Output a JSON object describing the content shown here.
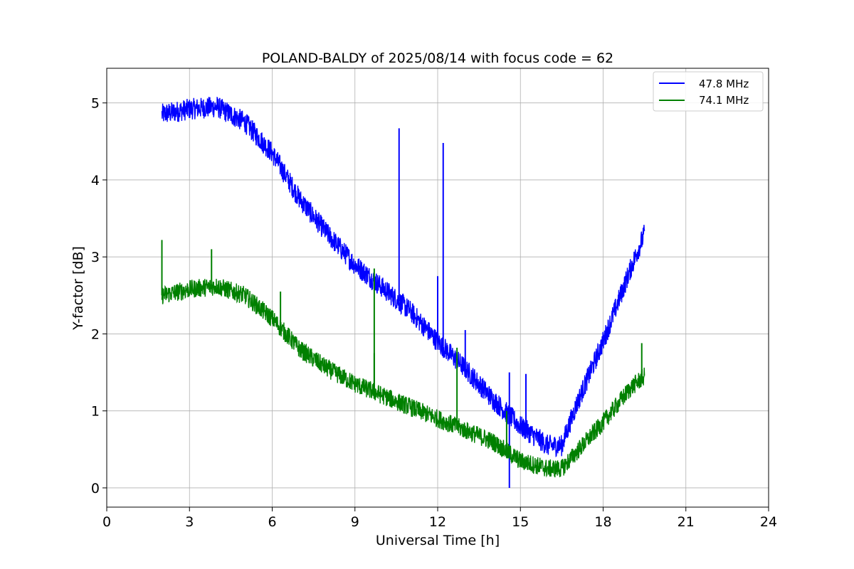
{
  "chart_data": {
    "type": "line",
    "title": "POLAND-BALDY of 2025/08/14 with focus code = 62",
    "xlabel": "Universal Time [h]",
    "ylabel": "Y-factor [dB]",
    "xlim": [
      0,
      24
    ],
    "ylim": [
      -0.25,
      5.45
    ],
    "xticks": [
      0,
      3,
      6,
      9,
      12,
      15,
      18,
      21,
      24
    ],
    "yticks": [
      0,
      1,
      2,
      3,
      4,
      5
    ],
    "grid": true,
    "legend_position": "top-right",
    "series": [
      {
        "name": "47.8 MHz",
        "color": "#0000ff",
        "x": [
          2.0,
          3.0,
          4.0,
          5.0,
          6.0,
          7.0,
          8.0,
          9.0,
          10.0,
          11.0,
          12.0,
          13.0,
          14.0,
          15.0,
          16.0,
          16.5,
          17.0,
          18.0,
          19.0,
          19.5
        ],
        "y": [
          4.85,
          4.92,
          4.95,
          4.75,
          4.35,
          3.75,
          3.3,
          2.9,
          2.6,
          2.3,
          1.9,
          1.55,
          1.15,
          0.8,
          0.55,
          0.55,
          1.05,
          1.9,
          2.85,
          3.3
        ],
        "spikes": [
          [
            10.6,
            4.67
          ],
          [
            12.2,
            4.48
          ],
          [
            12.0,
            2.75
          ],
          [
            13.0,
            2.05
          ],
          [
            14.6,
            1.5
          ],
          [
            15.2,
            1.48
          ],
          [
            14.6,
            0.0
          ]
        ]
      },
      {
        "name": "74.1 MHz",
        "color": "#008000",
        "x": [
          2.0,
          3.0,
          4.0,
          5.0,
          6.0,
          7.0,
          8.0,
          9.0,
          10.0,
          11.0,
          12.0,
          13.0,
          14.0,
          15.0,
          16.0,
          16.5,
          17.0,
          18.0,
          19.0,
          19.5
        ],
        "y": [
          2.5,
          2.58,
          2.62,
          2.5,
          2.2,
          1.8,
          1.55,
          1.35,
          1.2,
          1.05,
          0.9,
          0.75,
          0.6,
          0.35,
          0.25,
          0.25,
          0.45,
          0.85,
          1.3,
          1.45
        ],
        "spikes": [
          [
            2.0,
            3.22
          ],
          [
            3.8,
            3.1
          ],
          [
            9.7,
            2.85
          ],
          [
            9.7,
            1.75
          ],
          [
            6.3,
            2.55
          ],
          [
            12.7,
            1.82
          ],
          [
            14.5,
            1.0
          ],
          [
            19.4,
            1.88
          ]
        ]
      }
    ]
  }
}
